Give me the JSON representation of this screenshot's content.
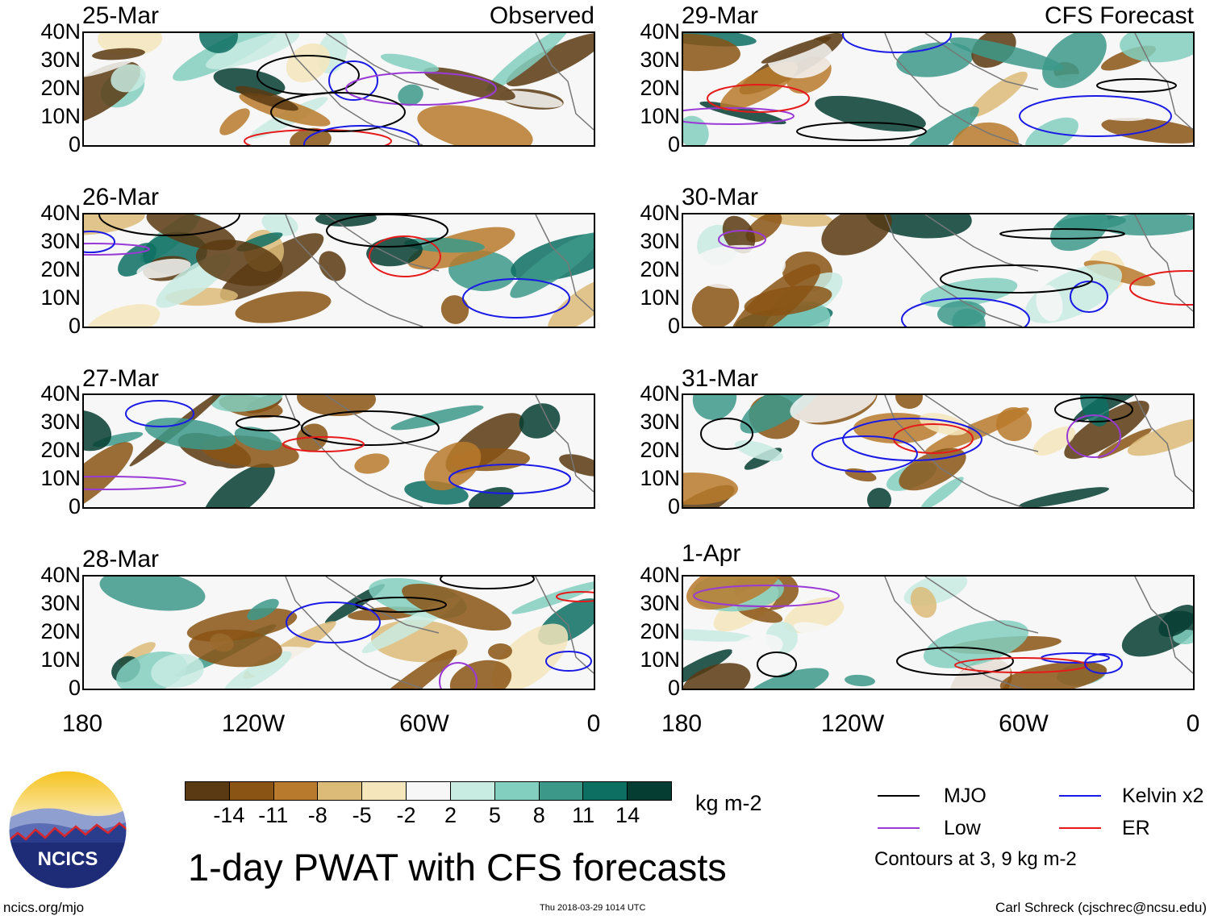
{
  "panels_left": [
    {
      "date": "25-Mar",
      "corner": "Observed"
    },
    {
      "date": "26-Mar",
      "corner": ""
    },
    {
      "date": "27-Mar",
      "corner": ""
    },
    {
      "date": "28-Mar",
      "corner": ""
    }
  ],
  "panels_right": [
    {
      "date": "29-Mar",
      "corner": "CFS Forecast"
    },
    {
      "date": "30-Mar",
      "corner": ""
    },
    {
      "date": "31-Mar",
      "corner": ""
    },
    {
      "date": "1-Apr",
      "corner": ""
    }
  ],
  "lat_labels": [
    "40N",
    "30N",
    "20N",
    "10N",
    "0"
  ],
  "lon_labels": [
    "180",
    "120W",
    "60W",
    "0"
  ],
  "colorbar": {
    "colors": [
      "#5a3a12",
      "#8a5414",
      "#b87a2c",
      "#dcbb78",
      "#f5e6bc",
      "#f7f7f7",
      "#c8ebe2",
      "#82cfbf",
      "#3c998a",
      "#0d6e62",
      "#063d33"
    ],
    "ticks": [
      "-14",
      "-11",
      "-8",
      "-5",
      "-2",
      "2",
      "5",
      "8",
      "11",
      "14"
    ],
    "units": "kg m-2"
  },
  "title": "1-day PWAT with CFS forecasts",
  "legend": {
    "items": [
      {
        "label": "MJO",
        "color": "#000000"
      },
      {
        "label": "Kelvin x2",
        "color": "#1a1ae6"
      },
      {
        "label": "Low",
        "color": "#9a3ad6"
      },
      {
        "label": "ER",
        "color": "#e61a1a"
      }
    ],
    "note": "Contours at 3, 9 kg m-2"
  },
  "logo_text": "NCICS",
  "footer": {
    "left": "ncics.org/mjo",
    "center": "Thu 2018-03-29 1014 UTC",
    "right": "Carl Schreck (cjschrec@ncsu.edu)"
  }
}
